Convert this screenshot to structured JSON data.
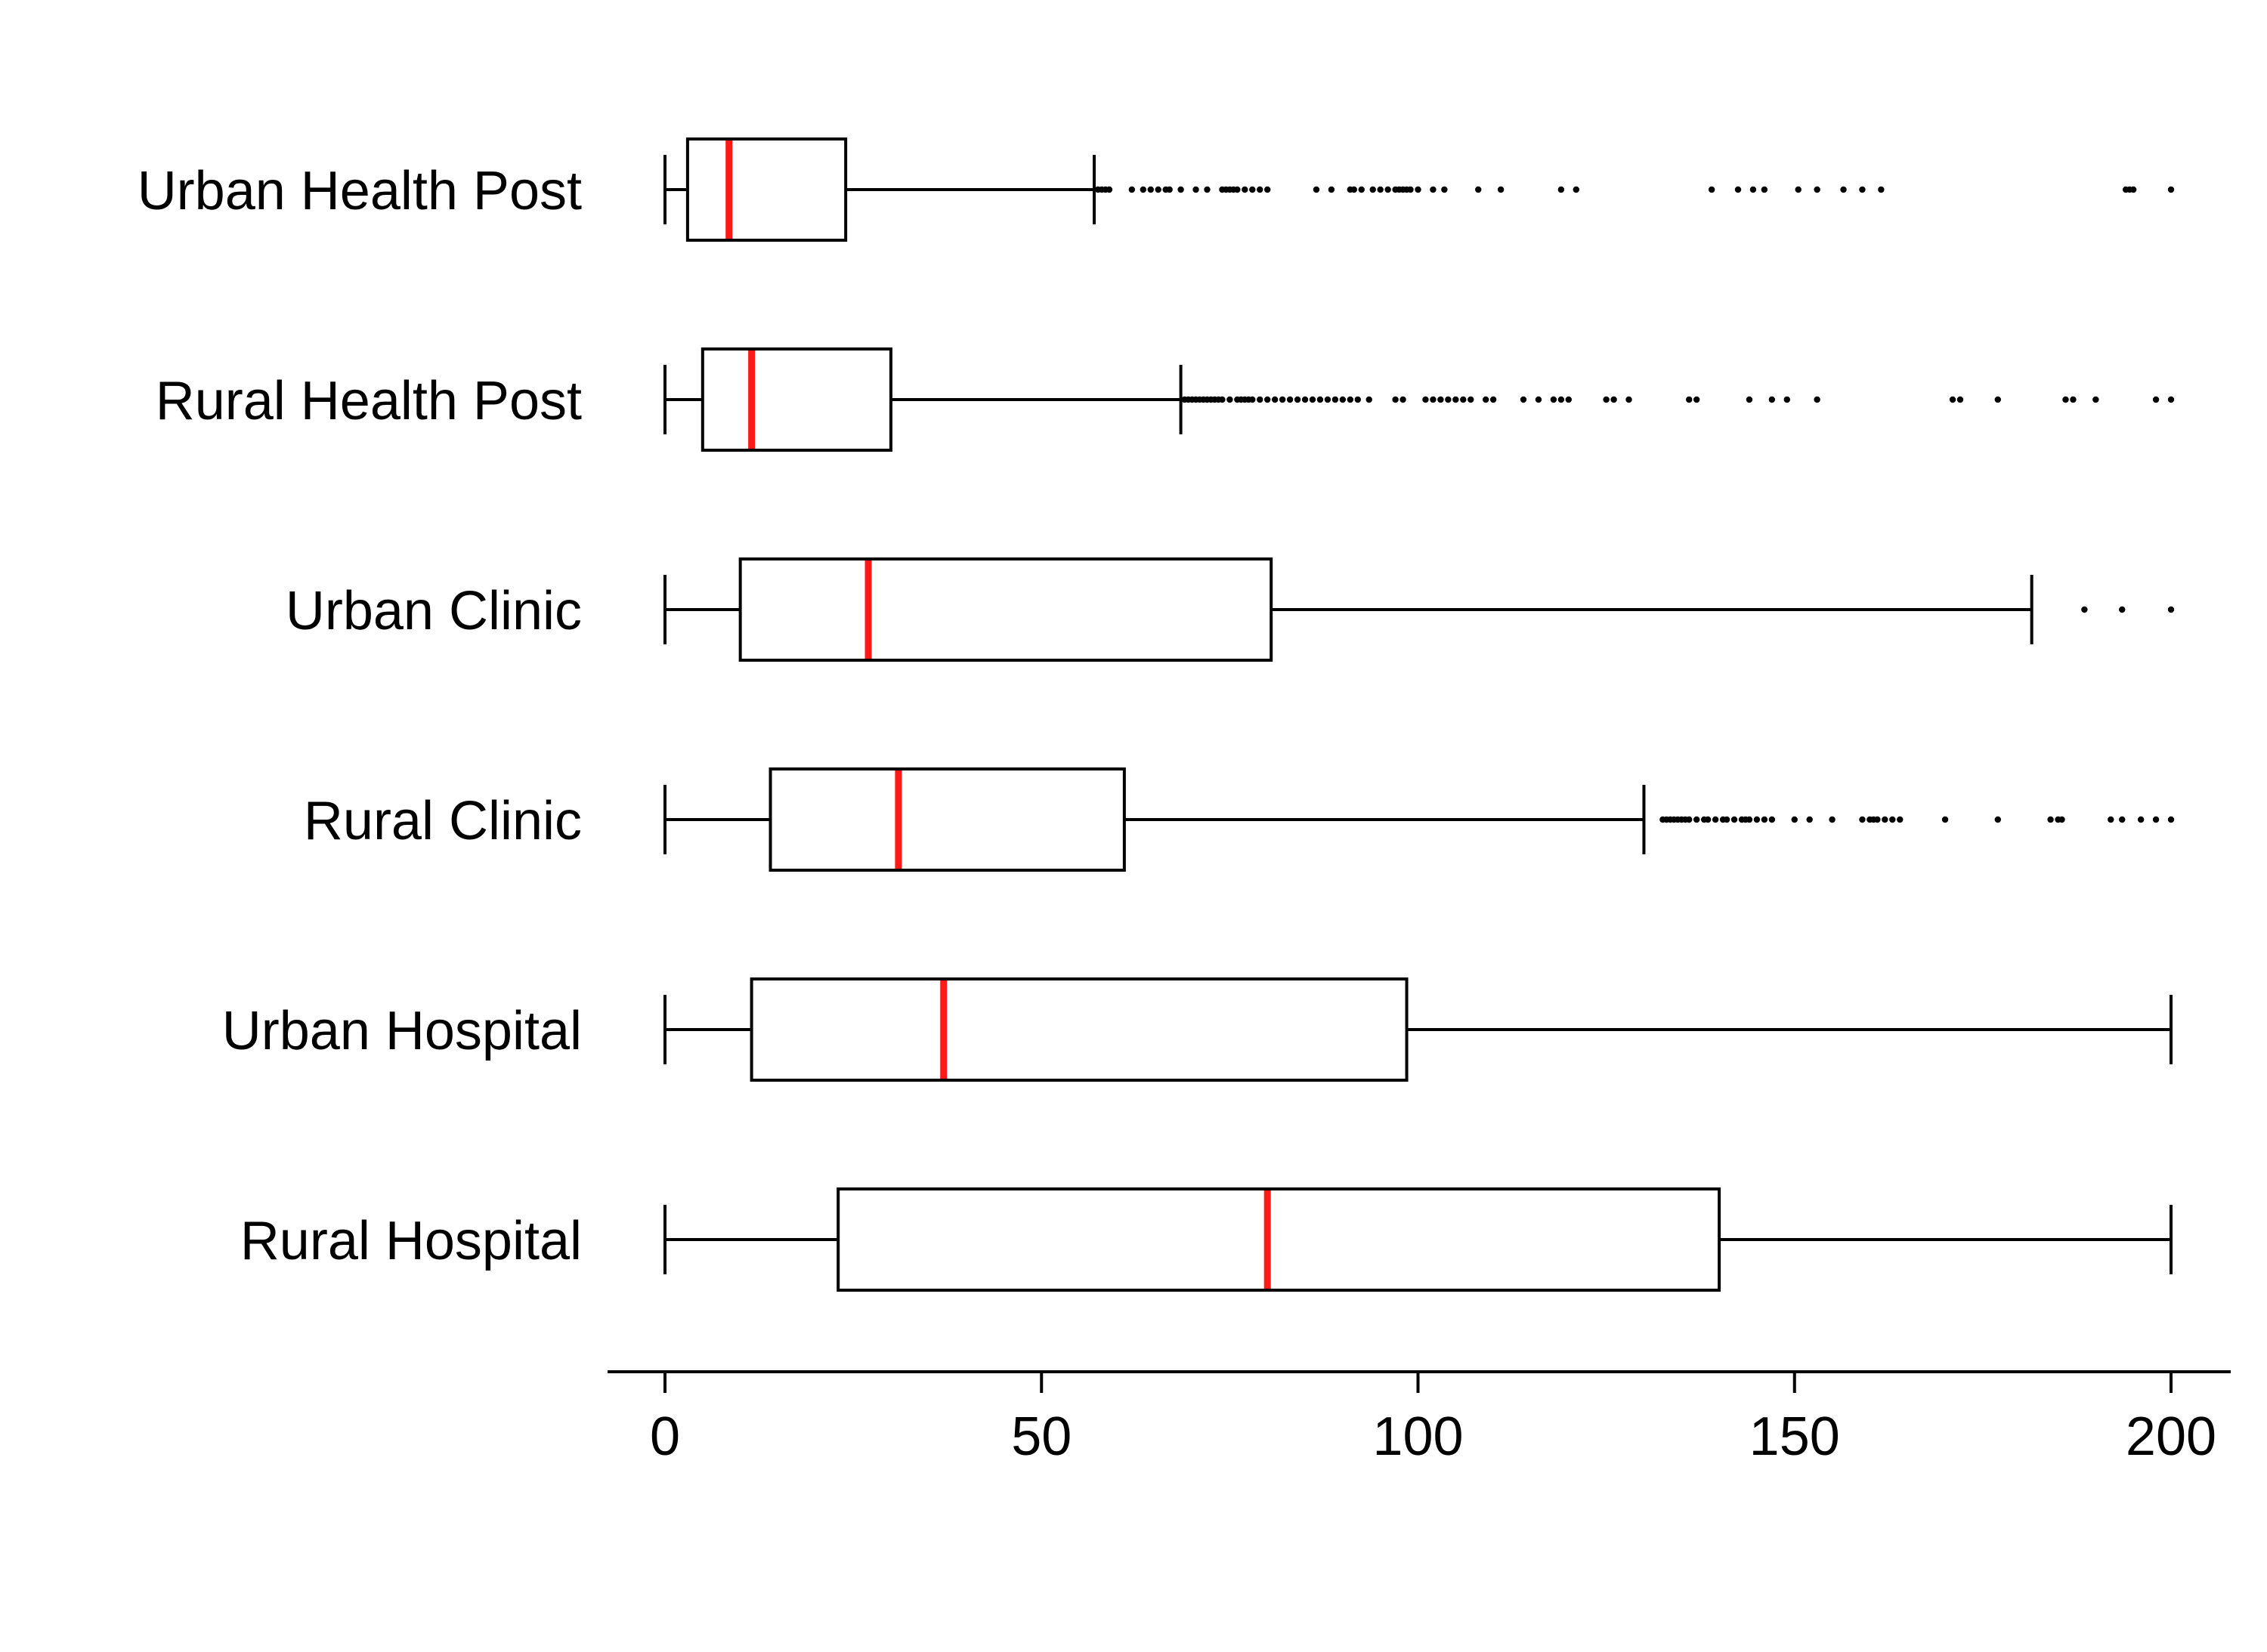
{
  "chart_data": {
    "type": "box",
    "orientation": "horizontal",
    "title": "",
    "xlabel": "",
    "ylabel": "",
    "xlim": [
      0,
      200
    ],
    "xticks": [
      0,
      50,
      100,
      150,
      200
    ],
    "xtick_labels": [
      "0",
      "50",
      "100",
      "150",
      "200"
    ],
    "grid": false,
    "legend": "none",
    "colors": {
      "median": "#ff1a1a",
      "box": "#000000",
      "whisker": "#000000",
      "outlier": "#000000"
    },
    "categories": [
      "Urban Health Post",
      "Rural Health Post",
      "Urban Clinic",
      "Rural Clinic",
      "Urban Hospital",
      "Rural Hospital"
    ],
    "boxes": [
      {
        "label": "Urban Health Post",
        "whisker_low": 0,
        "q1": 3,
        "median": 8.5,
        "q3": 24,
        "whisker_high": 57,
        "outliers": [
          57.5,
          58,
          58.5,
          59,
          62,
          63.5,
          64.5,
          65.5,
          66.5,
          67,
          68.5,
          70.5,
          72,
          74,
          74.5,
          75,
          75.5,
          76,
          77,
          78,
          79,
          80,
          86.5,
          88.5,
          91,
          91.5,
          92.5,
          94,
          95,
          96,
          97,
          97.5,
          98,
          98.5,
          99,
          100,
          102,
          103.5,
          108,
          111,
          119,
          121,
          139,
          142.5,
          144.5,
          146,
          150.5,
          153,
          156.5,
          159,
          161.5,
          194,
          194.5,
          195,
          200
        ]
      },
      {
        "label": "Rural Health Post",
        "whisker_low": 0,
        "q1": 5,
        "median": 11.5,
        "q3": 30,
        "whisker_high": 68.5,
        "outliers": [
          69,
          69.5,
          70,
          70.5,
          71,
          71.5,
          72,
          72.5,
          73,
          73.5,
          74,
          75,
          76,
          76.5,
          77,
          77.5,
          78,
          79,
          80,
          81,
          82,
          83,
          84,
          85,
          86,
          87,
          88,
          89,
          90,
          91,
          92,
          93.5,
          97,
          98,
          101,
          102,
          103,
          104,
          105,
          106,
          107,
          109,
          110,
          114,
          116,
          118,
          119,
          120,
          125,
          126,
          128,
          136,
          137,
          144,
          147,
          149,
          153,
          171,
          172,
          177,
          186,
          187,
          190,
          198,
          200
        ]
      },
      {
        "label": "Urban Clinic",
        "whisker_low": 0,
        "q1": 10,
        "median": 27,
        "q3": 80.5,
        "whisker_high": 181.5,
        "outliers": [
          188.5,
          193.5,
          200
        ]
      },
      {
        "label": "Rural Clinic",
        "whisker_low": 0,
        "q1": 14,
        "median": 31,
        "q3": 61,
        "whisker_high": 130,
        "outliers": [
          132.5,
          133,
          133.5,
          134,
          134.5,
          135,
          135.5,
          136,
          137,
          138,
          138.5,
          139.5,
          140.5,
          141,
          142,
          143,
          143.5,
          144,
          145,
          146,
          147,
          150,
          152,
          155,
          159,
          160,
          160.5,
          161,
          162,
          163,
          164,
          170,
          177,
          184,
          185,
          185.5,
          192,
          193.5,
          196,
          198,
          200
        ]
      },
      {
        "label": "Urban Hospital",
        "whisker_low": 0,
        "q1": 11.5,
        "median": 37,
        "q3": 98.5,
        "whisker_high": 200,
        "outliers": []
      },
      {
        "label": "Rural Hospital",
        "whisker_low": 0,
        "q1": 23,
        "median": 80,
        "q3": 140,
        "whisker_high": 200,
        "outliers": []
      }
    ]
  }
}
